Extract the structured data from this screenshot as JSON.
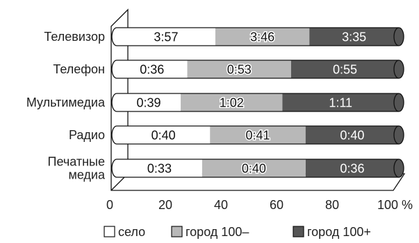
{
  "chart_data": {
    "type": "bar",
    "orientation": "horizontal",
    "stacked": "percent",
    "categories": [
      "Телевизор",
      "Телефон",
      "Мультимедиа",
      "Радио",
      "Печатные медиа"
    ],
    "category_lines": [
      [
        "Телевизор"
      ],
      [
        "Телефон"
      ],
      [
        "Мультимедиа"
      ],
      [
        "Радио"
      ],
      [
        "Печатные",
        "медиа"
      ]
    ],
    "series": [
      {
        "name": "село",
        "color": "#ffffff",
        "label_color": "#111111",
        "values": [
          3.95,
          0.6,
          0.65,
          0.6667,
          0.55
        ],
        "labels": [
          "3:57",
          "0:36",
          "0:39",
          "0:40",
          "0:33"
        ]
      },
      {
        "name": "город 100–",
        "color": "#b8b8b8",
        "label_color": "#111111",
        "values": [
          3.7667,
          0.8833,
          1.0333,
          0.6833,
          0.6667
        ],
        "labels": [
          "3:46",
          "0:53",
          "1:02",
          "0:41",
          "0:40"
        ]
      },
      {
        "name": "город 100+",
        "color": "#555555",
        "label_color": "#ffffff",
        "values": [
          3.5833,
          0.9167,
          1.1833,
          0.6667,
          0.6
        ],
        "labels": [
          "3:35",
          "0:55",
          "1:11",
          "0:40",
          "0:36"
        ]
      }
    ],
    "xlim": [
      0,
      100
    ],
    "x_ticks": [
      "0",
      "20",
      "40",
      "60",
      "80",
      "100 %"
    ],
    "grid": false,
    "legend_position": "bottom"
  }
}
